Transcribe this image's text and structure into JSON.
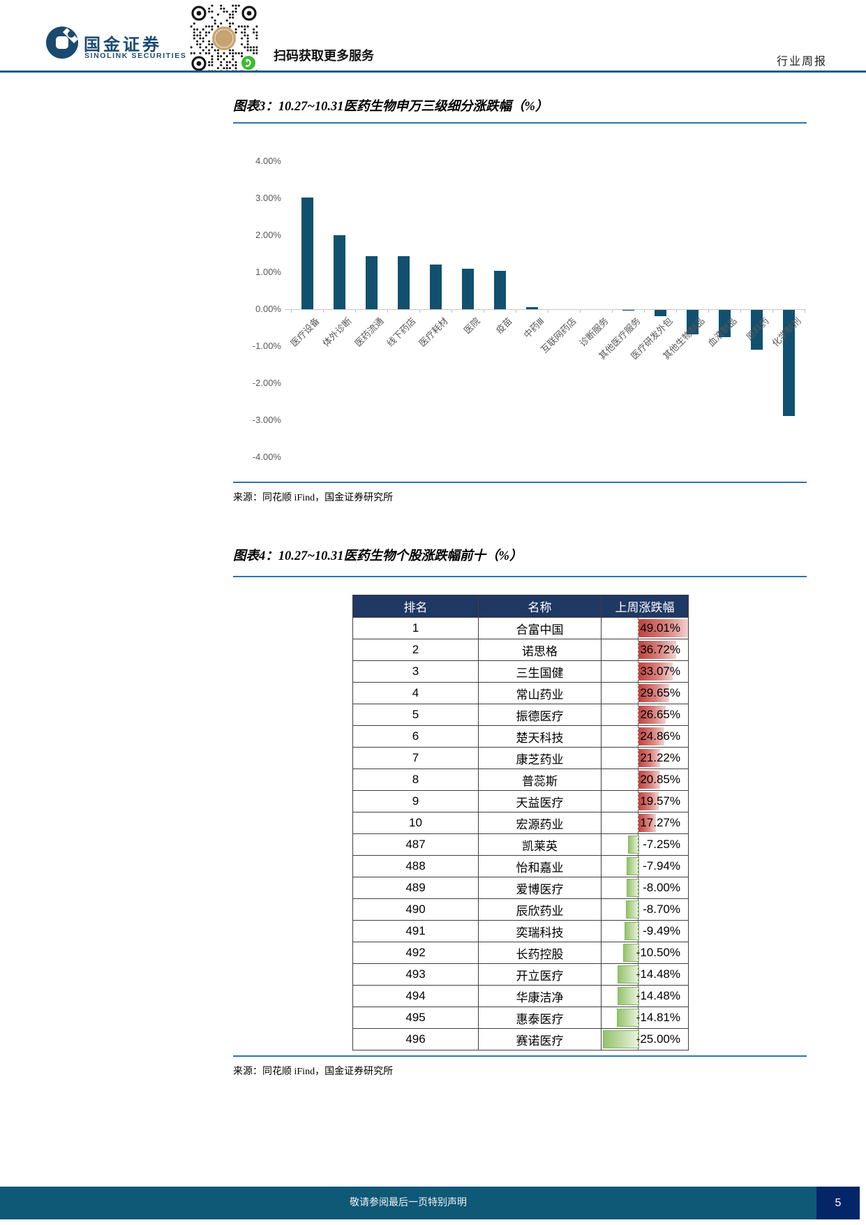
{
  "header": {
    "brand_cn": "国金证券",
    "brand_en": "SINOLINK SECURITIES",
    "scan_text": "扫码获取更多服务",
    "report_type": "行业周报"
  },
  "colors": {
    "brand_navy": "#1B4A70",
    "rule_blue": "#2F75A2",
    "bar_teal": "#11506F",
    "table_header_bg": "#1F3864",
    "databar_positive": "#BE4340",
    "databar_negative": "#93C36C",
    "footer_bar": "#0F5876",
    "footer_page_box": "#052569"
  },
  "fig3": {
    "title": "图表3：10.27~10.31医药生物申万三级细分涨跌幅（%）",
    "source": "来源：同花顺 iFind，国金证券研究所"
  },
  "fig4": {
    "title": "图表4：10.27~10.31医药生物个股涨跌幅前十（%）",
    "source": "来源：同花顺 iFind，国金证券研究所"
  },
  "chart_data": [
    {
      "id": "industry_bar",
      "type": "bar",
      "title": "图表3：10.27~10.31医药生物申万三级细分涨跌幅（%）",
      "categories": [
        "医疗设备",
        "体外诊断",
        "医药流通",
        "线下药店",
        "医疗耗材",
        "医院",
        "疫苗",
        "中药Ⅲ",
        "互联网药店",
        "诊断服务",
        "其他医疗服务",
        "医疗研发外包",
        "其他生物制品",
        "血液制品",
        "原料药",
        "化学制剂"
      ],
      "values": [
        3.02,
        2.0,
        1.44,
        1.43,
        1.21,
        1.1,
        1.04,
        0.06,
        0.0,
        0.0,
        -0.02,
        -0.17,
        -0.66,
        -0.74,
        -1.08,
        -2.87
      ],
      "xlabel": "",
      "ylabel": "",
      "ylim": [
        -4,
        4
      ],
      "ytick_step": 1,
      "ytick_format": "0.00%",
      "grid": false,
      "legend": "none",
      "bar_color": "#11506F"
    },
    {
      "id": "stock_top_bottom_table",
      "type": "table",
      "title": "图表4：10.27~10.31医药生物个股涨跌幅前十（%）",
      "columns": [
        "排名",
        "名称",
        "上周涨跌幅"
      ],
      "rows": [
        [
          1,
          "合富中国",
          49.01
        ],
        [
          2,
          "诺思格",
          36.72
        ],
        [
          3,
          "三生国健",
          33.07
        ],
        [
          4,
          "常山药业",
          29.65
        ],
        [
          5,
          "振德医疗",
          26.65
        ],
        [
          6,
          "楚天科技",
          24.86
        ],
        [
          7,
          "康芝药业",
          21.22
        ],
        [
          8,
          "普蕊斯",
          20.85
        ],
        [
          9,
          "天益医疗",
          19.57
        ],
        [
          10,
          "宏源药业",
          17.27
        ],
        [
          487,
          "凯莱英",
          -7.25
        ],
        [
          488,
          "怡和嘉业",
          -7.94
        ],
        [
          489,
          "爱博医疗",
          -8.0
        ],
        [
          490,
          "辰欣药业",
          -8.7
        ],
        [
          491,
          "奕瑞科技",
          -9.49
        ],
        [
          492,
          "长药控股",
          -10.5
        ],
        [
          493,
          "开立医疗",
          -14.48
        ],
        [
          494,
          "华康洁净",
          -14.48
        ],
        [
          495,
          "惠泰医疗",
          -14.81
        ],
        [
          496,
          "赛诺医疗",
          -25.0
        ]
      ],
      "value_format": "percent_2dp",
      "databar_axis": "dashed"
    }
  ],
  "footer": {
    "disclaimer": "敬请参阅最后一页特别声明",
    "page_number": "5"
  }
}
